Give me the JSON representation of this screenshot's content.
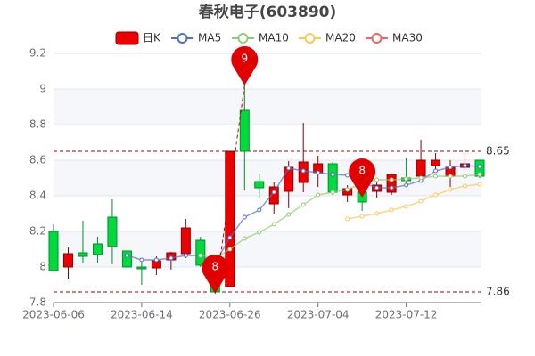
{
  "chart_data": {
    "type": "candlestick",
    "title": "春秋电子(603890)",
    "categories": [
      "2023-06-06",
      null,
      null,
      null,
      null,
      null,
      "2023-06-14",
      null,
      null,
      null,
      null,
      null,
      "2023-06-26",
      null,
      null,
      null,
      null,
      null,
      "2023-07-04",
      null,
      null,
      null,
      null,
      null,
      "2023-07-12",
      null,
      null,
      null,
      null,
      null
    ],
    "series": [
      {
        "name": "日K",
        "up_color": "#ec0000",
        "down_color": "#00da3c",
        "open": [
          8.2,
          8.0,
          8.08,
          8.13,
          8.28,
          8.09,
          8.0,
          7.995,
          8.04,
          8.075,
          8.15,
          7.94,
          7.89,
          8.88,
          8.48,
          8.355,
          8.425,
          8.475,
          8.53,
          8.58,
          8.405,
          8.42,
          8.425,
          8.42,
          8.5,
          8.51,
          8.57,
          8.51,
          8.56,
          8.6
        ],
        "close": [
          7.98,
          8.075,
          8.06,
          8.07,
          8.115,
          8.0,
          7.99,
          8.035,
          8.08,
          8.22,
          8.01,
          7.86,
          8.65,
          8.65,
          8.445,
          8.45,
          8.56,
          8.59,
          8.58,
          8.42,
          8.44,
          8.365,
          8.46,
          8.52,
          8.485,
          8.6,
          8.6,
          8.56,
          8.58,
          8.51
        ],
        "low": [
          7.98,
          7.935,
          8.02,
          8.02,
          8.015,
          8.0,
          7.9,
          7.955,
          7.985,
          8.05,
          8.0,
          7.85,
          7.89,
          8.43,
          8.39,
          8.3,
          8.33,
          8.42,
          8.45,
          8.405,
          8.365,
          8.315,
          8.39,
          8.405,
          8.45,
          8.5,
          8.55,
          8.45,
          8.54,
          8.5
        ],
        "high": [
          8.24,
          8.11,
          8.26,
          8.17,
          8.38,
          8.09,
          8.05,
          8.06,
          8.085,
          8.27,
          8.17,
          7.96,
          8.65,
          9.02,
          8.525,
          8.475,
          8.595,
          8.81,
          8.625,
          8.59,
          8.46,
          8.5,
          8.475,
          8.525,
          8.61,
          8.715,
          8.64,
          8.6,
          8.645,
          8.6
        ]
      },
      {
        "name": "MA5",
        "color": "#5470c6",
        "values": [
          null,
          null,
          null,
          null,
          null,
          8.065,
          8.04,
          8.04,
          8.05,
          8.065,
          8.065,
          8.025,
          8.165,
          8.28,
          8.32,
          8.42,
          8.555,
          8.54,
          8.53,
          8.52,
          8.515,
          8.475,
          8.445,
          8.445,
          8.46,
          8.485,
          8.54,
          8.56,
          8.57,
          8.565
        ]
      },
      {
        "name": "MA10",
        "color": "#91cc75",
        "values": [
          null,
          null,
          null,
          null,
          null,
          null,
          null,
          null,
          null,
          null,
          8.065,
          8.05,
          8.1,
          8.16,
          8.195,
          8.24,
          8.295,
          8.35,
          8.405,
          8.42,
          8.435,
          8.47,
          8.49,
          8.49,
          8.495,
          8.5,
          8.51,
          8.51,
          8.51,
          8.52
        ]
      },
      {
        "name": "MA20",
        "color": "#fac858",
        "values": [
          null,
          null,
          null,
          null,
          null,
          null,
          null,
          null,
          null,
          null,
          null,
          null,
          null,
          null,
          null,
          null,
          null,
          null,
          null,
          null,
          8.27,
          8.285,
          8.3,
          8.32,
          8.34,
          8.37,
          8.405,
          8.435,
          8.455,
          8.465
        ]
      },
      {
        "name": "MA30",
        "color": "#ee6666",
        "values": [
          null,
          null,
          null,
          null,
          null,
          null,
          null,
          null,
          null,
          null,
          null,
          null,
          null,
          null,
          null,
          null,
          null,
          null,
          null,
          null,
          null,
          null,
          null,
          null,
          null,
          null,
          null,
          null,
          null,
          null
        ]
      }
    ],
    "mark_lines": [
      {
        "value": 8.65
      },
      {
        "value": 7.86
      }
    ],
    "mark_points": [
      {
        "index": 13,
        "value": 9.02,
        "label": "9"
      },
      {
        "index": 11,
        "value": 7.85,
        "label": "8"
      },
      {
        "index": 21,
        "value": 8.39,
        "label": "8"
      }
    ],
    "ylim": [
      7.8,
      9.2
    ],
    "yticks": [
      7.8,
      8,
      8.2,
      8.4,
      8.6,
      8.8,
      9,
      9.2
    ],
    "grid": true
  }
}
